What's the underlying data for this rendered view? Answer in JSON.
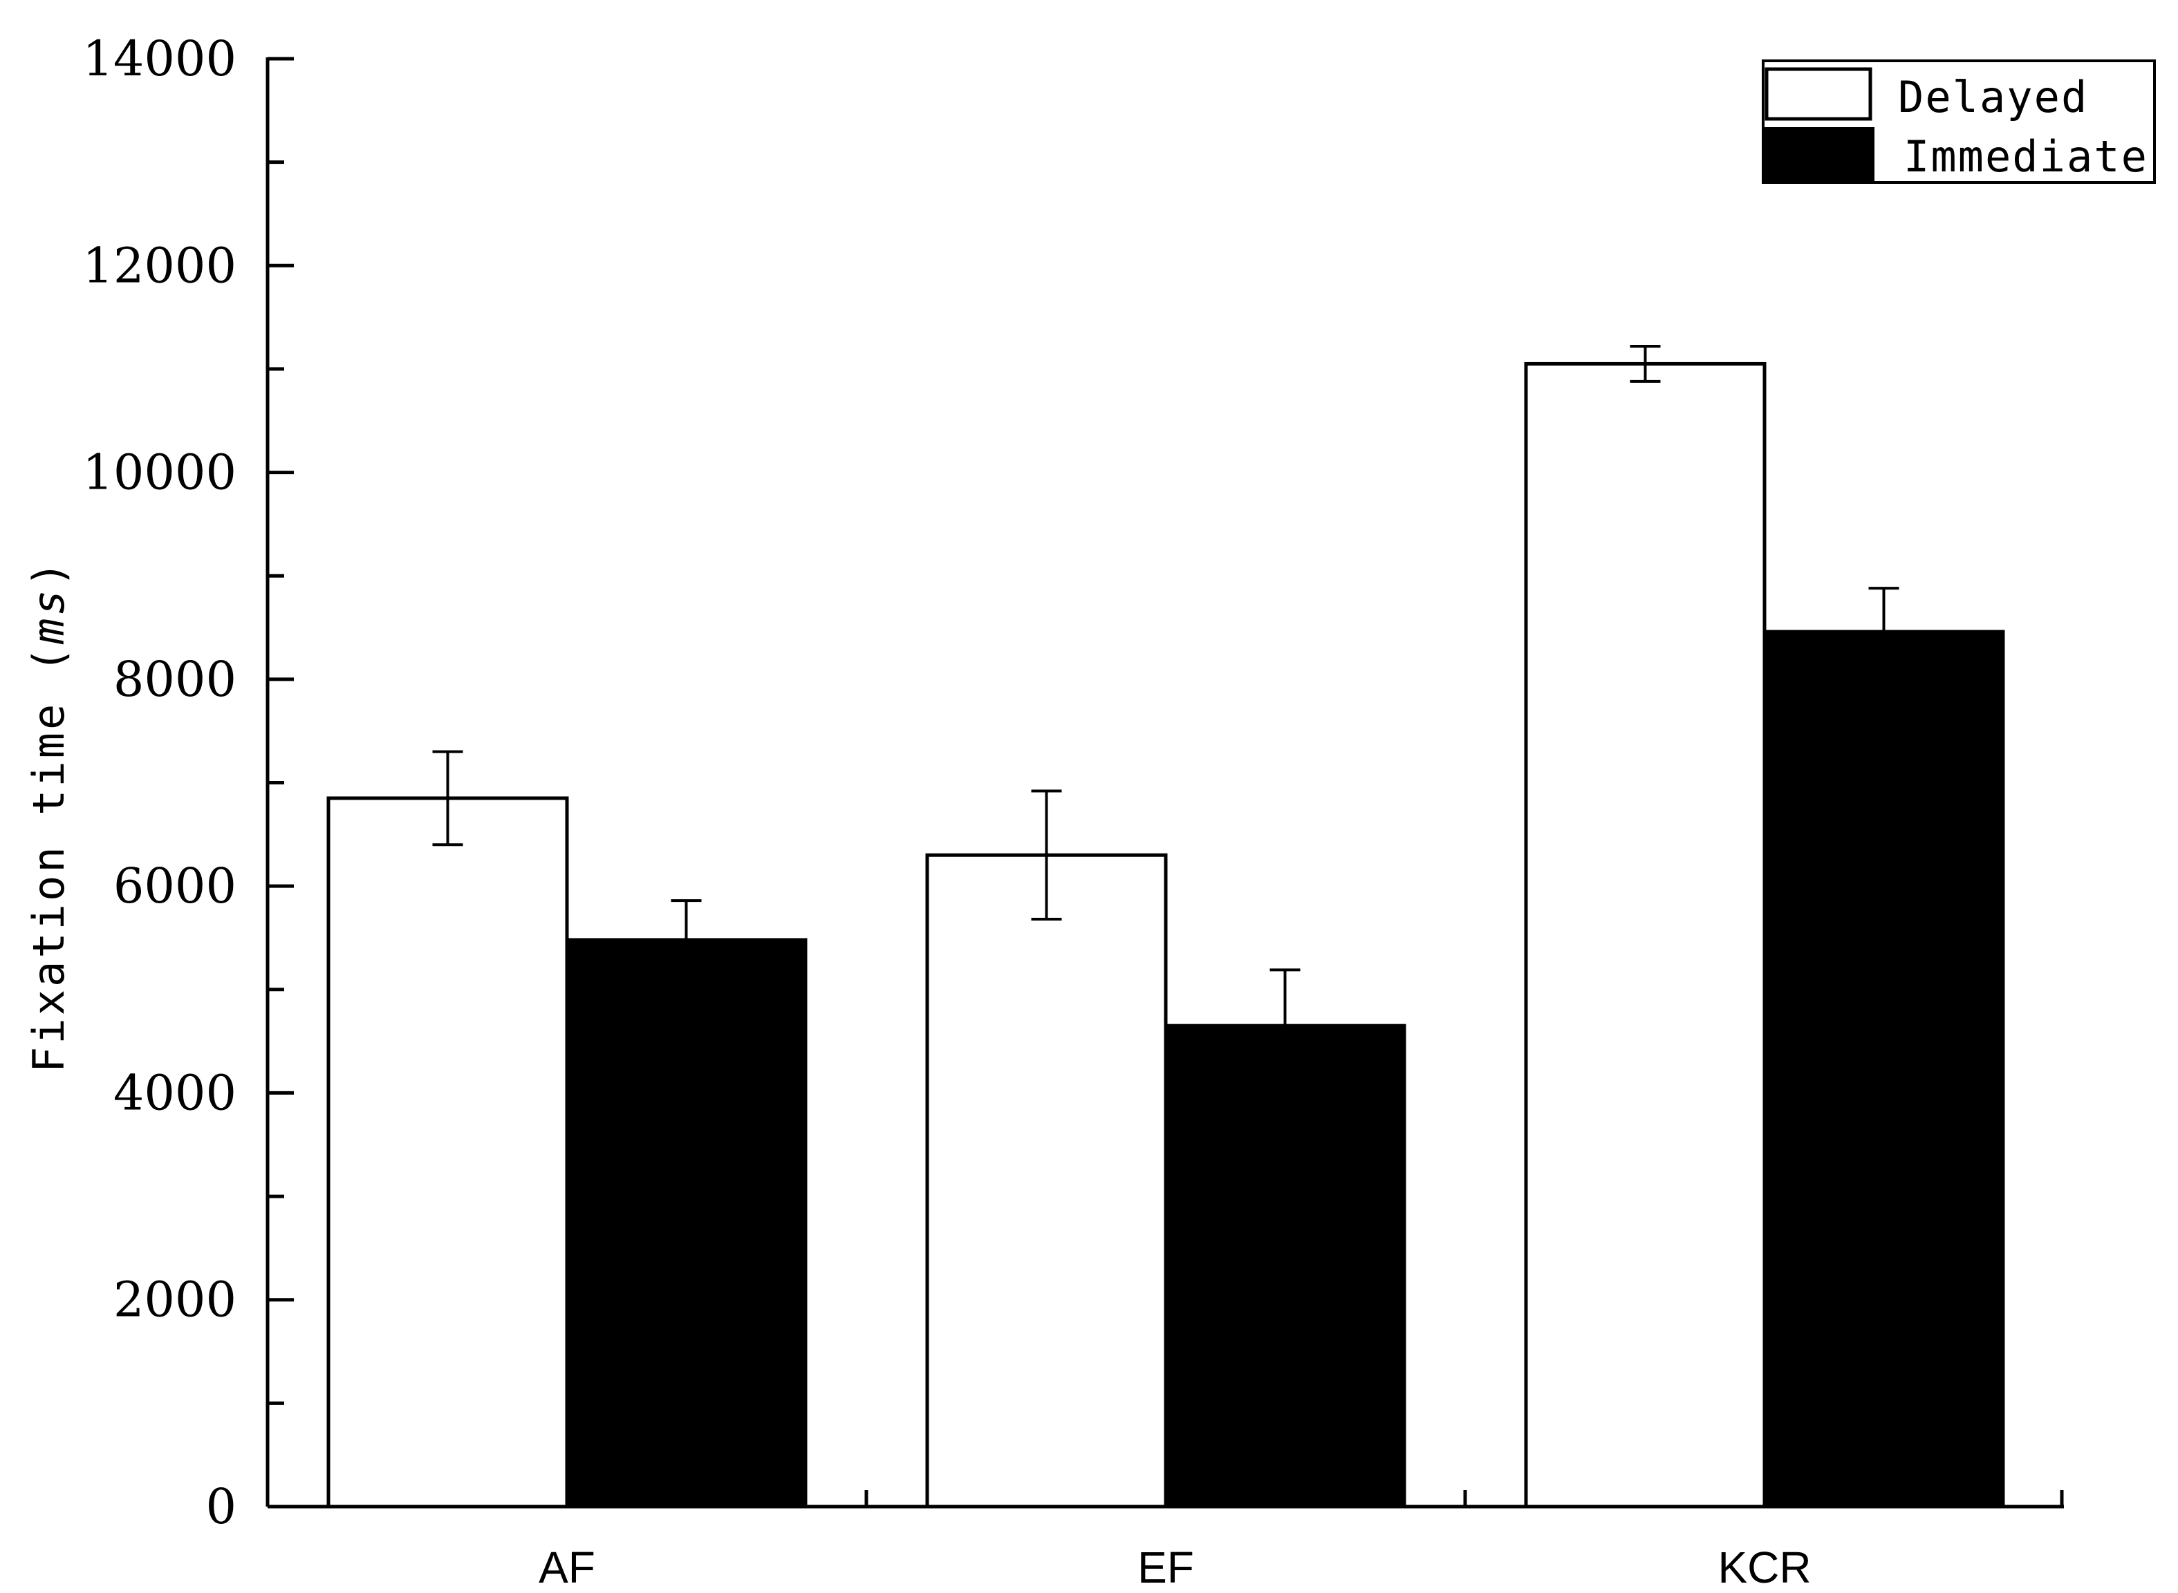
{
  "chart_data": {
    "type": "bar",
    "title": "",
    "xlabel": "",
    "ylabel": "Fixation time",
    "ylabel_unit": "ms",
    "ylim": [
      0,
      14000
    ],
    "yticks": [
      0,
      2000,
      4000,
      6000,
      8000,
      10000,
      12000,
      14000
    ],
    "yminor_step": 1000,
    "categories": [
      "AF",
      "EF",
      "KCR"
    ],
    "grid": false,
    "legend_position": "top-right",
    "series": [
      {
        "name": "Delayed",
        "values": [
          6850,
          6300,
          11050
        ],
        "errors": [
          450,
          620,
          170
        ],
        "fill": "#ffffff",
        "stroke": "#000000"
      },
      {
        "name": "Immediate",
        "values": [
          5480,
          4650,
          8460
        ],
        "errors": [
          380,
          540,
          420
        ],
        "fill": "#000000",
        "stroke": "#000000"
      }
    ]
  }
}
